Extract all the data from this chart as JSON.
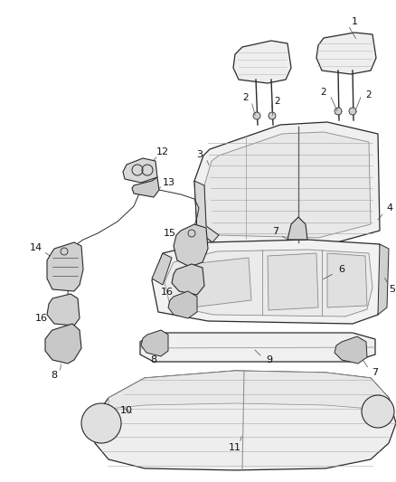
{
  "bg": "#ffffff",
  "lc": "#2a2a2a",
  "lc_light": "#888888",
  "fw": 4.38,
  "fh": 5.33,
  "dpi": 100,
  "label_fs": 7.5,
  "label_color": "#111111"
}
